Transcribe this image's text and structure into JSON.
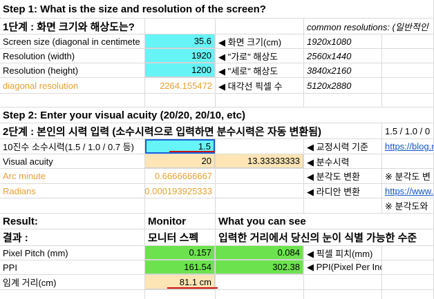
{
  "sheet": {
    "rows": {
      "1": {
        "A": "Step 1: What is the size and resolution of the screen?"
      },
      "2": {
        "A": "1단계 : 화면 크기와 해상도는?",
        "D": "common resolutions: (일반적인"
      },
      "3": {
        "A": "Screen size (diagonal in centimete",
        "B": 35.6,
        "C": "◀ 화면 크기(cm)",
        "D": "1920x1080"
      },
      "4": {
        "A": "Resolution (width)",
        "B": 1920,
        "C": "◀ \"가로\" 해상도",
        "D": "2560x1440"
      },
      "5": {
        "A": "Resolution (height)",
        "B": 1200,
        "C": "◀ \"세로\" 해상도",
        "D": "3840x2160"
      },
      "6": {
        "A": "diagonal resolution",
        "B": 2264.155472,
        "C": "◀ 대각선 픽셀 수",
        "D": "5120x2880"
      },
      "8": {
        "A": "Step 2: Enter your visual acuity (20/20, 20/10, etc)"
      },
      "9": {
        "A": "2단계 : 본인의 시력 입력 (소수시력으로 입력하면 분수시력은 자동 변환됨)",
        "E": "1.5 / 1.0 / 0"
      },
      "10": {
        "A": "10진수 소수시력(1.5 / 1.0 / 0.7 등)",
        "B": 1.5,
        "D": "◀ 교정시력 기준",
        "E": "https://blog.n"
      },
      "11": {
        "A": "Visual acuity",
        "B": 20,
        "C": 13.33333333,
        "D": "◀ 분수시력"
      },
      "12": {
        "A": "Arc minute",
        "B": 0.6666666667,
        "D": "◀ 분각도 변환",
        "E": "※ 분각도 변"
      },
      "13": {
        "A": "Radians",
        "B": 0.000193925333,
        "D": "◀ 라디안 변환",
        "E": "https://www."
      },
      "14": {
        "E": "※ 분각도와"
      },
      "15": {
        "A": "Result:",
        "B": "Monitor",
        "C": "What you can see"
      },
      "16": {
        "A": "결과 :",
        "B": "모니터 스펙",
        "C": "입력한 거리에서 당신의 눈이 식별 가능한 수준"
      },
      "17": {
        "A": "Pixel Pitch (mm)",
        "B": 0.157,
        "C": 0.084,
        "D": "◀ 픽셀 피치(mm)"
      },
      "18": {
        "A": "PPI",
        "B": 161.54,
        "C": 302.38,
        "D": "◀ PPI(Pixel Per Inch)"
      },
      "19": {
        "A": "임계 거리(cm)",
        "B": "81.1 cm"
      }
    }
  }
}
